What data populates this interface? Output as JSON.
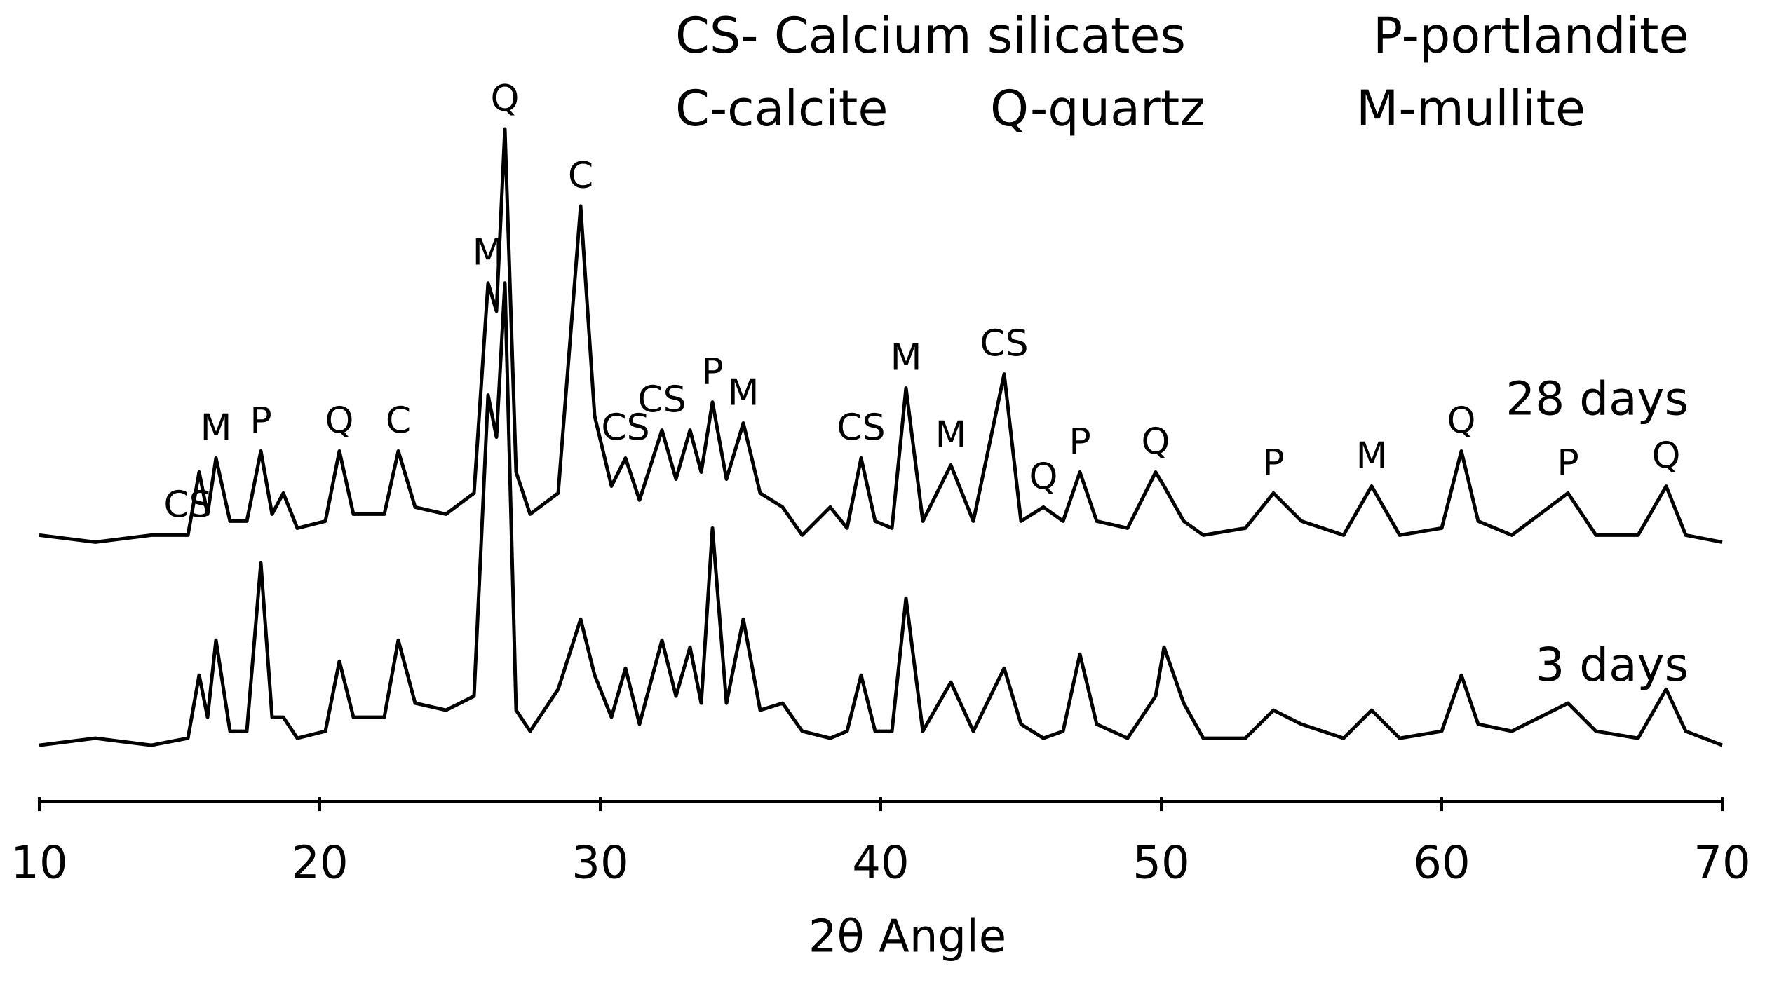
{
  "chart_data": {
    "type": "line",
    "legend_notes": [
      "CS- Calcium silicates",
      "P-portlandite",
      "C-calcite",
      "Q-quartz",
      "M-mullite"
    ],
    "xlabel": "2θ Angle",
    "x": [
      10,
      12,
      14,
      15.3,
      15.7,
      16.0,
      16.3,
      16.8,
      17.4,
      17.9,
      18.3,
      18.7,
      19.2,
      20.2,
      20.7,
      21.2,
      22.3,
      22.8,
      23.4,
      24.5,
      25.5,
      26.0,
      26.3,
      26.6,
      27.0,
      27.5,
      28.5,
      29.3,
      29.8,
      30.4,
      30.9,
      31.4,
      32.2,
      32.7,
      33.2,
      33.6,
      34.0,
      34.5,
      35.1,
      35.7,
      36.5,
      37.2,
      38.2,
      38.8,
      39.3,
      39.8,
      40.4,
      40.9,
      41.5,
      42.5,
      43.3,
      44.4,
      45.0,
      45.8,
      46.5,
      47.1,
      47.7,
      48.8,
      49.8,
      50.1,
      50.8,
      51.5,
      53.0,
      54.0,
      55.0,
      56.5,
      57.5,
      58.5,
      60.0,
      60.7,
      61.3,
      62.5,
      64.5,
      65.5,
      67.0,
      68.0,
      68.7,
      70
    ],
    "series": [
      {
        "name": "28 days",
        "color": "#000000",
        "values": [
          38,
          37,
          38,
          38,
          47,
          41,
          49,
          40,
          40,
          50,
          41,
          44,
          39,
          40,
          50,
          41,
          41,
          50,
          42,
          41,
          44,
          74,
          70,
          96,
          47,
          41,
          44,
          85,
          55,
          45,
          49,
          43,
          53,
          46,
          53,
          47,
          57,
          46,
          54,
          44,
          42,
          38,
          42,
          39,
          49,
          40,
          39,
          59,
          40,
          48,
          40,
          61,
          40,
          42,
          40,
          47,
          40,
          39,
          47,
          45,
          40,
          38,
          39,
          44,
          40,
          38,
          45,
          38,
          39,
          50,
          40,
          38,
          44,
          38,
          38,
          45,
          38,
          37
        ]
      },
      {
        "name": "3 days",
        "color": "#000000",
        "values": [
          8,
          9,
          8,
          9,
          18,
          12,
          23,
          10,
          10,
          34,
          12,
          12,
          9,
          10,
          20,
          12,
          12,
          23,
          14,
          13,
          15,
          58,
          52,
          74,
          13,
          10,
          16,
          26,
          18,
          12,
          19,
          11,
          23,
          15,
          22,
          14,
          39,
          14,
          26,
          13,
          14,
          10,
          9,
          10,
          18,
          10,
          10,
          29,
          10,
          17,
          10,
          19,
          11,
          9,
          10,
          21,
          11,
          9,
          15,
          22,
          14,
          9,
          9,
          13,
          11,
          9,
          13,
          9,
          10,
          18,
          11,
          10,
          14,
          10,
          9,
          16,
          10,
          8
        ]
      }
    ],
    "annotations": [
      {
        "text": "CS",
        "x": 15.3
      },
      {
        "text": "M",
        "x": 16.3
      },
      {
        "text": "P",
        "x": 17.9
      },
      {
        "text": "Q",
        "x": 20.7
      },
      {
        "text": "C",
        "x": 22.8
      },
      {
        "text": "M",
        "x": 26.0
      },
      {
        "text": "Q",
        "x": 26.6
      },
      {
        "text": "C",
        "x": 29.3
      },
      {
        "text": "CS",
        "x": 30.9
      },
      {
        "text": "CS",
        "x": 32.2
      },
      {
        "text": "P",
        "x": 34.0
      },
      {
        "text": "M",
        "x": 35.1
      },
      {
        "text": "CS",
        "x": 39.3
      },
      {
        "text": "M",
        "x": 40.9
      },
      {
        "text": "M",
        "x": 42.5
      },
      {
        "text": "CS",
        "x": 44.4
      },
      {
        "text": "Q",
        "x": 45.8
      },
      {
        "text": "P",
        "x": 47.1
      },
      {
        "text": "Q",
        "x": 49.8
      },
      {
        "text": "P",
        "x": 54.0
      },
      {
        "text": "M",
        "x": 57.5
      },
      {
        "text": "Q",
        "x": 60.7
      },
      {
        "text": "P",
        "x": 64.5
      },
      {
        "text": "Q",
        "x": 68.0
      }
    ],
    "xlim": [
      10,
      70
    ],
    "xticks": [
      10,
      20,
      30,
      40,
      50,
      60,
      70
    ],
    "ylim": [
      0,
      100
    ],
    "grid": false
  }
}
